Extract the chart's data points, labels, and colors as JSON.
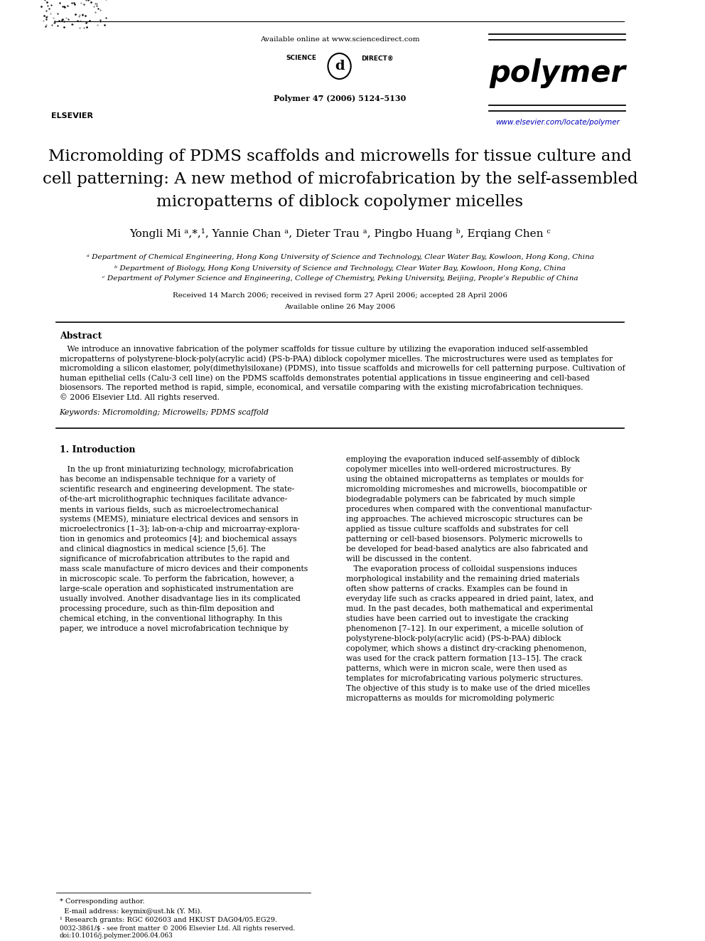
{
  "bg_color": "#ffffff",
  "header_available_online": "Available online at www.sciencedirect.com",
  "journal_name": "polymer",
  "journal_cite": "Polymer 47 (2006) 5124–5130",
  "journal_url": "www.elsevier.com/locate/polymer",
  "title_line1": "Micromolding of PDMS scaffolds and microwells for tissue culture and",
  "title_line2": "cell patterning: A new method of microfabrication by the self-assembled",
  "title_line3": "micropatterns of diblock copolymer micelles",
  "authors": "Yongli Mi ᵃ,*,¹, Yannie Chan ᵃ, Dieter Trau ᵃ, Pingbo Huang ᵇ, Erqiang Chen ᶜ",
  "affil_a": "ᵃ Department of Chemical Engineering, Hong Kong University of Science and Technology, Clear Water Bay, Kowloon, Hong Kong, China",
  "affil_b": "ᵇ Department of Biology, Hong Kong University of Science and Technology, Clear Water Bay, Kowloon, Hong Kong, China",
  "affil_c": "ᶜ Department of Polymer Science and Engineering, College of Chemistry, Peking University, Beijing, People’s Republic of China",
  "received": "Received 14 March 2006; received in revised form 27 April 2006; accepted 28 April 2006",
  "available": "Available online 26 May 2006",
  "abstract_title": "Abstract",
  "abstract_text": "   We introduce an innovative fabrication of the polymer scaffolds for tissue culture by utilizing the evaporation induced self-assembled micropatterns of polystyrene-block-poly(acrylic acid) (PS-b-PAA) diblock copolymer micelles. The microstructures were used as templates for micromolding a silicon elastomer, poly(dimethylsiloxane) (PDMS), into tissue scaffolds and microwells for cell patterning purpose. Cultivation of human epithelial cells (Calu-3 cell line) on the PDMS scaffolds demonstrates potential applications in tissue engineering and cell-based biosensors. The reported method is rapid, simple, economical, and versatile comparing with the existing microfabrication techniques.\n© 2006 Elsevier Ltd. All rights reserved.",
  "keywords": "Keywords: Micromolding; Microwells; PDMS scaffold",
  "section1_title": "1. Introduction",
  "section1_left": "   In the up front miniaturizing technology, microfabrication has become an indispensable technique for a variety of scientific research and engineering development. The state-of-the-art microlithographic techniques facilitate advancements in various fields, such as microelectromechanical systems (MEMS), miniature electrical devices and sensors in microelectronics [1–3]; lab-on-a-chip and microarray-exploration in genomics and proteomics [4]; and biochemical assays and clinical diagnostics in medical science [5,6]. The significance of microfabrication attributes to the rapid and mass scale manufacture of micro devices and their components in microscopic scale. To perform the fabrication, however, a large-scale operation and sophisticated instrumentation are usually involved. Another disadvantage lies in its complicated processing procedure, such as thin-film deposition and chemical etching, in the conventional lithography. In this paper, we introduce a novel microfabrication technique by",
  "section1_right": "employing the evaporation induced self-assembly of diblock copolymer micelles into well-ordered microstructures. By using the obtained micropatterns as templates or moulds for micromolding micromeshes and microwells, biocompatible or biodegradable polymers can be fabricated by much simple procedures when compared with the conventional manufacturing approaches. The achieved microscopic structures can be applied as tissue culture scaffolds and substrates for cell patterning or cell-based biosensors. Polymeric microwells to be developed for bead-based analytics are also fabricated and will be discussed in the content.\n   The evaporation process of colloidal suspensions induces morphological instability and the remaining dried materials often show patterns of cracks. Examples can be found in everyday life such as cracks appeared in dried paint, latex, and mud. In the past decades, both mathematical and experimental studies have been carried out to investigate the cracking phenomenon [7–12]. In our experiment, a micelle solution of polystyrene-block-poly(acrylic acid) (PS-b-PAA) diblock copolymer, which shows a distinct dry-cracking phenomenon, was used for the crack pattern formation [13–15]. The crack patterns, which were in micron scale, were then used as templates for microfabricating various polymeric structures. The objective of this study is to make use of the dried micelles micropatterns as moulds for micromolding polymeric",
  "footer_left": "* Corresponding author.",
  "footer_email": "  E-mail address: keymix@ust.hk (Y. Mi).",
  "footer_grant": "¹ Research grants: RGC 602603 and HKUST DAG04/05.EG29.",
  "footer_issn": "0032-3861/$ - see front matter © 2006 Elsevier Ltd. All rights reserved.",
  "footer_doi": "doi:10.1016/j.polymer.2006.04.063"
}
